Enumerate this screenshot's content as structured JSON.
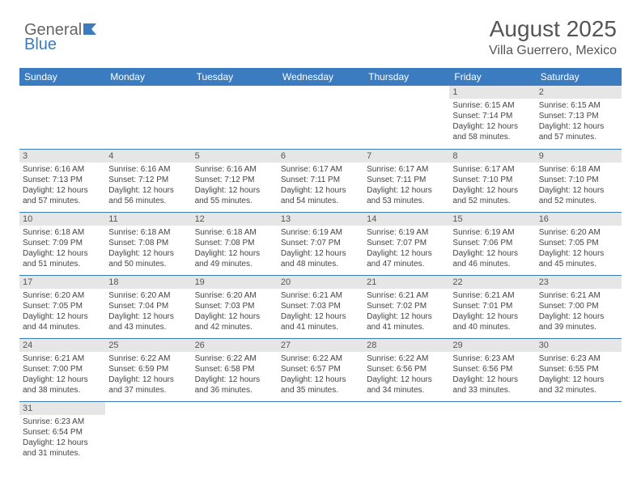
{
  "logo": {
    "general": "General",
    "blue": "Blue"
  },
  "header": {
    "month_title": "August 2025",
    "location": "Villa Guerrero, Mexico"
  },
  "daynames": [
    "Sunday",
    "Monday",
    "Tuesday",
    "Wednesday",
    "Thursday",
    "Friday",
    "Saturday"
  ],
  "colors": {
    "header_bg": "#3b7bbf",
    "header_fg": "#ffffff",
    "daynum_bg": "#e6e6e6",
    "row_border": "#3b7bbf",
    "text": "#444444"
  },
  "weeks": [
    [
      null,
      null,
      null,
      null,
      null,
      {
        "n": "1",
        "sunrise": "6:15 AM",
        "sunset": "7:14 PM",
        "dh": "12",
        "dm": "58"
      },
      {
        "n": "2",
        "sunrise": "6:15 AM",
        "sunset": "7:13 PM",
        "dh": "12",
        "dm": "57"
      }
    ],
    [
      {
        "n": "3",
        "sunrise": "6:16 AM",
        "sunset": "7:13 PM",
        "dh": "12",
        "dm": "57"
      },
      {
        "n": "4",
        "sunrise": "6:16 AM",
        "sunset": "7:12 PM",
        "dh": "12",
        "dm": "56"
      },
      {
        "n": "5",
        "sunrise": "6:16 AM",
        "sunset": "7:12 PM",
        "dh": "12",
        "dm": "55"
      },
      {
        "n": "6",
        "sunrise": "6:17 AM",
        "sunset": "7:11 PM",
        "dh": "12",
        "dm": "54"
      },
      {
        "n": "7",
        "sunrise": "6:17 AM",
        "sunset": "7:11 PM",
        "dh": "12",
        "dm": "53"
      },
      {
        "n": "8",
        "sunrise": "6:17 AM",
        "sunset": "7:10 PM",
        "dh": "12",
        "dm": "52"
      },
      {
        "n": "9",
        "sunrise": "6:18 AM",
        "sunset": "7:10 PM",
        "dh": "12",
        "dm": "52"
      }
    ],
    [
      {
        "n": "10",
        "sunrise": "6:18 AM",
        "sunset": "7:09 PM",
        "dh": "12",
        "dm": "51"
      },
      {
        "n": "11",
        "sunrise": "6:18 AM",
        "sunset": "7:08 PM",
        "dh": "12",
        "dm": "50"
      },
      {
        "n": "12",
        "sunrise": "6:18 AM",
        "sunset": "7:08 PM",
        "dh": "12",
        "dm": "49"
      },
      {
        "n": "13",
        "sunrise": "6:19 AM",
        "sunset": "7:07 PM",
        "dh": "12",
        "dm": "48"
      },
      {
        "n": "14",
        "sunrise": "6:19 AM",
        "sunset": "7:07 PM",
        "dh": "12",
        "dm": "47"
      },
      {
        "n": "15",
        "sunrise": "6:19 AM",
        "sunset": "7:06 PM",
        "dh": "12",
        "dm": "46"
      },
      {
        "n": "16",
        "sunrise": "6:20 AM",
        "sunset": "7:05 PM",
        "dh": "12",
        "dm": "45"
      }
    ],
    [
      {
        "n": "17",
        "sunrise": "6:20 AM",
        "sunset": "7:05 PM",
        "dh": "12",
        "dm": "44"
      },
      {
        "n": "18",
        "sunrise": "6:20 AM",
        "sunset": "7:04 PM",
        "dh": "12",
        "dm": "43"
      },
      {
        "n": "19",
        "sunrise": "6:20 AM",
        "sunset": "7:03 PM",
        "dh": "12",
        "dm": "42"
      },
      {
        "n": "20",
        "sunrise": "6:21 AM",
        "sunset": "7:03 PM",
        "dh": "12",
        "dm": "41"
      },
      {
        "n": "21",
        "sunrise": "6:21 AM",
        "sunset": "7:02 PM",
        "dh": "12",
        "dm": "41"
      },
      {
        "n": "22",
        "sunrise": "6:21 AM",
        "sunset": "7:01 PM",
        "dh": "12",
        "dm": "40"
      },
      {
        "n": "23",
        "sunrise": "6:21 AM",
        "sunset": "7:00 PM",
        "dh": "12",
        "dm": "39"
      }
    ],
    [
      {
        "n": "24",
        "sunrise": "6:21 AM",
        "sunset": "7:00 PM",
        "dh": "12",
        "dm": "38"
      },
      {
        "n": "25",
        "sunrise": "6:22 AM",
        "sunset": "6:59 PM",
        "dh": "12",
        "dm": "37"
      },
      {
        "n": "26",
        "sunrise": "6:22 AM",
        "sunset": "6:58 PM",
        "dh": "12",
        "dm": "36"
      },
      {
        "n": "27",
        "sunrise": "6:22 AM",
        "sunset": "6:57 PM",
        "dh": "12",
        "dm": "35"
      },
      {
        "n": "28",
        "sunrise": "6:22 AM",
        "sunset": "6:56 PM",
        "dh": "12",
        "dm": "34"
      },
      {
        "n": "29",
        "sunrise": "6:23 AM",
        "sunset": "6:56 PM",
        "dh": "12",
        "dm": "33"
      },
      {
        "n": "30",
        "sunrise": "6:23 AM",
        "sunset": "6:55 PM",
        "dh": "12",
        "dm": "32"
      }
    ],
    [
      {
        "n": "31",
        "sunrise": "6:23 AM",
        "sunset": "6:54 PM",
        "dh": "12",
        "dm": "31"
      },
      null,
      null,
      null,
      null,
      null,
      null
    ]
  ]
}
